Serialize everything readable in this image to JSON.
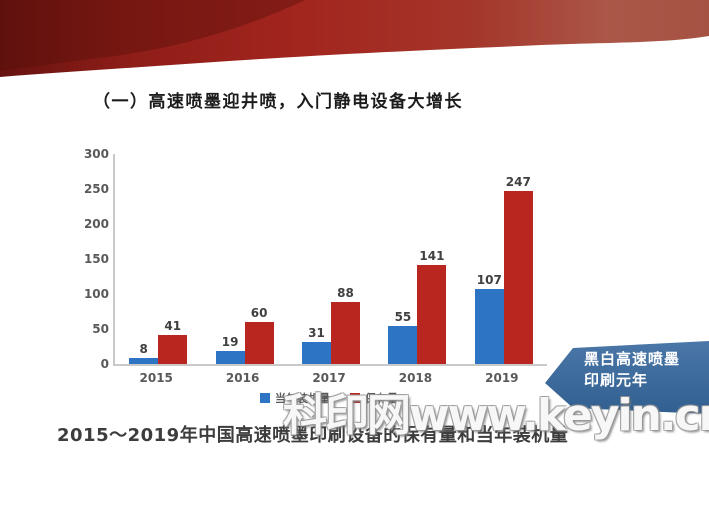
{
  "slide": {
    "title": "（一）高速喷墨迎井喷，入门静电设备大增长",
    "caption": "2015～2019年中国高速喷墨印刷设备的保有量和当年装机量",
    "watermark": "科印网www.keyin.cn",
    "banner": {
      "line1": "黑白高速喷墨",
      "line2": "印刷元年",
      "color": "#3d6a9c"
    },
    "ribbon_colors": [
      "#671310",
      "#a2251e",
      "#ab5748"
    ]
  },
  "chart_data": {
    "type": "bar",
    "title": "",
    "categories": [
      "2015",
      "2016",
      "2017",
      "2018",
      "2019"
    ],
    "series": [
      {
        "name": "当年装机量",
        "color": "#2e74c4",
        "values": [
          8,
          19,
          31,
          55,
          107
        ]
      },
      {
        "name": "保有量",
        "color": "#b9251f",
        "values": [
          41,
          60,
          88,
          141,
          247
        ]
      }
    ],
    "xlabel": "",
    "ylabel": "",
    "ylim": [
      0,
      300
    ],
    "yticks": [
      0,
      50,
      100,
      150,
      200,
      250,
      300
    ],
    "grid": false,
    "legend_position": "bottom"
  }
}
